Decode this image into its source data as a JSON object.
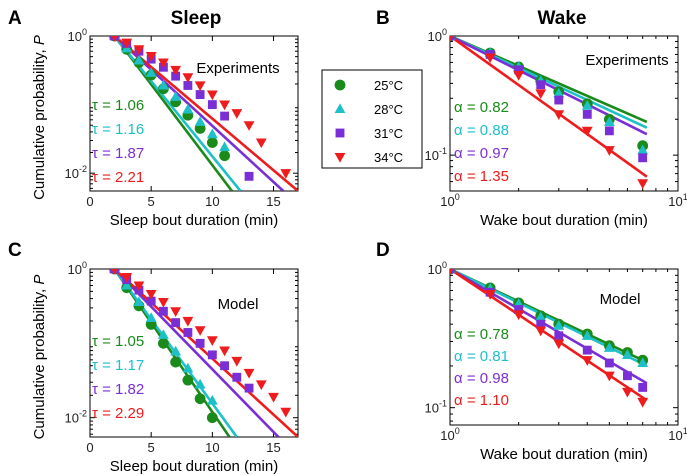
{
  "column_titles": [
    "Sleep",
    "Wake"
  ],
  "legend": {
    "entries": [
      {
        "label": "25°C",
        "color": "#1a8a1a",
        "marker": "circle"
      },
      {
        "label": "28°C",
        "color": "#1ec0c8",
        "marker": "triangle-up"
      },
      {
        "label": "31°C",
        "color": "#7a2fd6",
        "marker": "square"
      },
      {
        "label": "34°C",
        "color": "#ee1c1c",
        "marker": "triangle-down"
      }
    ]
  },
  "chart_data": [
    {
      "panel": "A",
      "type": "scatter",
      "subtitle": "Experiments",
      "xlabel": "Sleep bout duration (min)",
      "ylabel": "Cumulative probability, P",
      "xscale": "linear",
      "yscale": "log",
      "xlim": [
        0,
        17
      ],
      "ylim": [
        0.0055,
        1.0
      ],
      "xticks": [
        0,
        5,
        10,
        15
      ],
      "xticklabels": [
        "0",
        "5",
        "10",
        "15"
      ],
      "yticks": [
        0.01,
        1
      ],
      "yticklabels": [
        "10^-2",
        "10^0"
      ],
      "param_symbol": "τ",
      "series": [
        {
          "legend_index": 0,
          "param_value": "1.06",
          "x": [
            2,
            3,
            4,
            5,
            6,
            7,
            8,
            9,
            10,
            11
          ],
          "y": [
            1.0,
            0.64,
            0.41,
            0.27,
            0.17,
            0.11,
            0.07,
            0.045,
            0.028,
            0.018
          ],
          "fit": {
            "x": [
              2,
              11.6
            ],
            "y": [
              1.0,
              0.0055
            ]
          }
        },
        {
          "legend_index": 1,
          "param_value": "1.16",
          "x": [
            2,
            3,
            4,
            5,
            6,
            7,
            8,
            9,
            10,
            11
          ],
          "y": [
            1.0,
            0.66,
            0.44,
            0.29,
            0.19,
            0.13,
            0.085,
            0.056,
            0.037,
            0.024
          ],
          "fit": {
            "x": [
              2,
              12.3
            ],
            "y": [
              1.0,
              0.0055
            ]
          }
        },
        {
          "legend_index": 2,
          "param_value": "1.87",
          "x": [
            2,
            3,
            4,
            5,
            6,
            7,
            8,
            9,
            10,
            11,
            13
          ],
          "y": [
            1.0,
            0.78,
            0.6,
            0.46,
            0.35,
            0.26,
            0.19,
            0.14,
            0.1,
            0.068,
            0.009
          ],
          "fit": {
            "x": [
              2,
              15.8
            ],
            "y": [
              1.0,
              0.0055
            ]
          }
        },
        {
          "legend_index": 3,
          "param_value": "2.21",
          "x": [
            2,
            3,
            4,
            5,
            6,
            7,
            8,
            9,
            10,
            11,
            12,
            13,
            14,
            16
          ],
          "y": [
            1.0,
            0.8,
            0.64,
            0.51,
            0.41,
            0.32,
            0.25,
            0.19,
            0.14,
            0.1,
            0.075,
            0.05,
            0.028,
            0.01
          ],
          "fit": {
            "x": [
              2,
              17.0
            ],
            "y": [
              1.0,
              0.0055
            ]
          }
        }
      ]
    },
    {
      "panel": "B",
      "type": "scatter",
      "subtitle": "Experiments",
      "xlabel": "Wake bout duration (min)",
      "ylabel": "",
      "xscale": "log",
      "yscale": "log",
      "xlim": [
        1,
        10
      ],
      "ylim": [
        0.05,
        1.0
      ],
      "xticks": [
        1,
        10
      ],
      "xticklabels": [
        "10^0",
        "10^1"
      ],
      "yticks": [
        0.1,
        1
      ],
      "yticklabels": [
        "10^-1",
        "10^0"
      ],
      "param_symbol": "α",
      "series": [
        {
          "legend_index": 0,
          "param_value": "0.82",
          "x": [
            1,
            1.5,
            2,
            2.5,
            3,
            4,
            5,
            7
          ],
          "y": [
            1.0,
            0.72,
            0.55,
            0.42,
            0.34,
            0.27,
            0.2,
            0.12
          ],
          "fit": {
            "x": [
              1,
              7.3
            ],
            "y": [
              1.0,
              0.19
            ]
          }
        },
        {
          "legend_index": 1,
          "param_value": "0.88",
          "x": [
            1,
            1.5,
            2,
            2.5,
            3,
            4,
            5,
            7
          ],
          "y": [
            1.0,
            0.72,
            0.55,
            0.42,
            0.33,
            0.26,
            0.19,
            0.11
          ],
          "fit": {
            "x": [
              1,
              7.3
            ],
            "y": [
              1.0,
              0.17
            ]
          }
        },
        {
          "legend_index": 2,
          "param_value": "0.97",
          "x": [
            1,
            1.5,
            2,
            2.5,
            3,
            4,
            5,
            7
          ],
          "y": [
            1.0,
            0.7,
            0.52,
            0.39,
            0.29,
            0.22,
            0.16,
            0.095
          ],
          "fit": {
            "x": [
              1,
              7.3
            ],
            "y": [
              1.0,
              0.15
            ]
          }
        },
        {
          "legend_index": 3,
          "param_value": "1.35",
          "x": [
            1,
            1.5,
            2,
            2.5,
            3,
            4,
            5,
            7
          ],
          "y": [
            1.0,
            0.66,
            0.47,
            0.33,
            0.22,
            0.16,
            0.11,
            0.058
          ],
          "fit": {
            "x": [
              1,
              7.3
            ],
            "y": [
              1.0,
              0.066
            ]
          }
        }
      ]
    },
    {
      "panel": "C",
      "type": "scatter",
      "subtitle": "Model",
      "xlabel": "Sleep bout duration (min)",
      "ylabel": "Cumulative probability, P",
      "xscale": "linear",
      "yscale": "log",
      "xlim": [
        0,
        17
      ],
      "ylim": [
        0.0055,
        1.0
      ],
      "xticks": [
        0,
        5,
        10,
        15
      ],
      "xticklabels": [
        "0",
        "5",
        "10",
        "15"
      ],
      "yticks": [
        0.01,
        1
      ],
      "yticklabels": [
        "10^-2",
        "10^0"
      ],
      "param_symbol": "τ",
      "series": [
        {
          "legend_index": 0,
          "param_value": "1.05",
          "x": [
            2,
            3,
            4,
            5,
            6,
            7,
            8,
            9,
            10
          ],
          "y": [
            1.0,
            0.56,
            0.32,
            0.18,
            0.1,
            0.056,
            0.032,
            0.018,
            0.01
          ],
          "fit": {
            "x": [
              2,
              11.4
            ],
            "y": [
              1.0,
              0.0055
            ]
          }
        },
        {
          "legend_index": 1,
          "param_value": "1.17",
          "x": [
            2,
            3,
            4,
            5,
            6,
            7,
            8,
            9,
            10
          ],
          "y": [
            1.0,
            0.6,
            0.36,
            0.22,
            0.13,
            0.078,
            0.046,
            0.028,
            0.017
          ],
          "fit": {
            "x": [
              2,
              12.0
            ],
            "y": [
              1.0,
              0.0055
            ]
          }
        },
        {
          "legend_index": 2,
          "param_value": "1.82",
          "x": [
            2,
            3,
            4,
            5,
            6,
            7,
            8,
            9,
            10,
            11,
            12,
            13
          ],
          "y": [
            1.0,
            0.72,
            0.52,
            0.37,
            0.27,
            0.19,
            0.14,
            0.1,
            0.07,
            0.05,
            0.035,
            0.025
          ],
          "fit": {
            "x": [
              2,
              15.4
            ],
            "y": [
              1.0,
              0.0055
            ]
          }
        },
        {
          "legend_index": 3,
          "param_value": "2.29",
          "x": [
            2,
            3,
            4,
            5,
            6,
            7,
            8,
            9,
            10,
            11,
            12,
            13,
            14,
            15,
            16
          ],
          "y": [
            1.0,
            0.78,
            0.6,
            0.46,
            0.36,
            0.27,
            0.2,
            0.15,
            0.11,
            0.08,
            0.058,
            0.04,
            0.028,
            0.019,
            0.012
          ],
          "fit": {
            "x": [
              2,
              17.0
            ],
            "y": [
              1.0,
              0.0055
            ]
          }
        }
      ]
    },
    {
      "panel": "D",
      "type": "scatter",
      "subtitle": "Model",
      "xlabel": "Wake bout duration (min)",
      "ylabel": "",
      "xscale": "log",
      "yscale": "log",
      "xlim": [
        1,
        10
      ],
      "ylim": [
        0.075,
        1.0
      ],
      "xticks": [
        1,
        10
      ],
      "xticklabels": [
        "10^0",
        "10^1"
      ],
      "yticks": [
        0.1,
        1
      ],
      "yticklabels": [
        "10^-1",
        "10^0"
      ],
      "param_symbol": "α",
      "series": [
        {
          "legend_index": 0,
          "param_value": "0.78",
          "x": [
            1,
            1.5,
            2,
            2.5,
            3,
            4,
            5,
            6,
            7
          ],
          "y": [
            1.0,
            0.73,
            0.57,
            0.46,
            0.4,
            0.34,
            0.28,
            0.25,
            0.22
          ],
          "fit": {
            "x": [
              1,
              7.3
            ],
            "y": [
              1.0,
              0.213
            ]
          }
        },
        {
          "legend_index": 1,
          "param_value": "0.81",
          "x": [
            1,
            1.5,
            2,
            2.5,
            3,
            4,
            5,
            6,
            7
          ],
          "y": [
            1.0,
            0.72,
            0.56,
            0.45,
            0.39,
            0.33,
            0.27,
            0.24,
            0.21
          ],
          "fit": {
            "x": [
              1,
              7.3
            ],
            "y": [
              1.0,
              0.2
            ]
          }
        },
        {
          "legend_index": 2,
          "param_value": "0.98",
          "x": [
            1,
            1.5,
            2,
            2.5,
            3,
            4,
            5,
            6,
            7
          ],
          "y": [
            1.0,
            0.68,
            0.51,
            0.4,
            0.33,
            0.26,
            0.21,
            0.17,
            0.14
          ],
          "fit": {
            "x": [
              1,
              7.3
            ],
            "y": [
              1.0,
              0.15
            ]
          }
        },
        {
          "legend_index": 3,
          "param_value": "1.10",
          "x": [
            1,
            1.5,
            2,
            2.5,
            3,
            4,
            5,
            6,
            7
          ],
          "y": [
            1.0,
            0.66,
            0.47,
            0.36,
            0.29,
            0.22,
            0.17,
            0.13,
            0.11
          ],
          "fit": {
            "x": [
              1,
              7.3
            ],
            "y": [
              1.0,
              0.113
            ]
          }
        }
      ]
    }
  ]
}
